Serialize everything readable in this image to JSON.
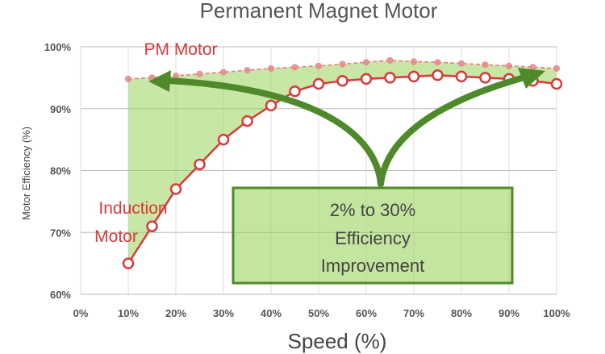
{
  "chart_data": {
    "type": "line",
    "title": "Permanent Magnet Motor",
    "xlabel": "Speed (%)",
    "ylabel": "Motor Efficiency (%)",
    "xlim": [
      0,
      100
    ],
    "ylim": [
      60,
      100
    ],
    "x_ticks": [
      "0%",
      "10%",
      "20%",
      "30%",
      "40%",
      "50%",
      "60%",
      "70%",
      "80%",
      "90%",
      "100%"
    ],
    "y_ticks": [
      "60%",
      "70%",
      "80%",
      "90%",
      "100%"
    ],
    "grid": true,
    "series": [
      {
        "name": "PM Motor",
        "color": "#e8888a",
        "line_style": "dashed",
        "x": [
          10,
          15,
          20,
          25,
          30,
          35,
          40,
          45,
          50,
          55,
          60,
          65,
          70,
          75,
          80,
          85,
          90,
          95,
          100
        ],
        "y": [
          94.8,
          95.0,
          95.3,
          95.6,
          95.9,
          96.2,
          96.5,
          96.7,
          96.9,
          97.2,
          97.5,
          97.8,
          97.6,
          97.5,
          97.3,
          97.1,
          96.9,
          96.7,
          96.5
        ]
      },
      {
        "name": "Induction Motor",
        "color": "#d83a3a",
        "line_style": "solid",
        "x": [
          10,
          15,
          20,
          25,
          30,
          35,
          40,
          45,
          50,
          55,
          60,
          65,
          70,
          75,
          80,
          85,
          90,
          95,
          100
        ],
        "y": [
          65,
          71,
          77,
          81,
          85,
          88,
          90.5,
          92.8,
          94.0,
          94.5,
          94.8,
          95.0,
          95.2,
          95.4,
          95.2,
          95.0,
          94.8,
          94.5,
          94.0
        ]
      }
    ],
    "series_labels": {
      "pm": "PM Motor",
      "induction_line1": "Induction",
      "induction_line2": "Motor"
    },
    "annotation": {
      "line1": "2% to 30%",
      "line2": "Efficiency",
      "line3": "Improvement",
      "fill_color": "#92d050",
      "border_color": "#4e8a2a",
      "arrow_color": "#4e8a2a"
    },
    "shaded_region_color": "#92d050"
  }
}
